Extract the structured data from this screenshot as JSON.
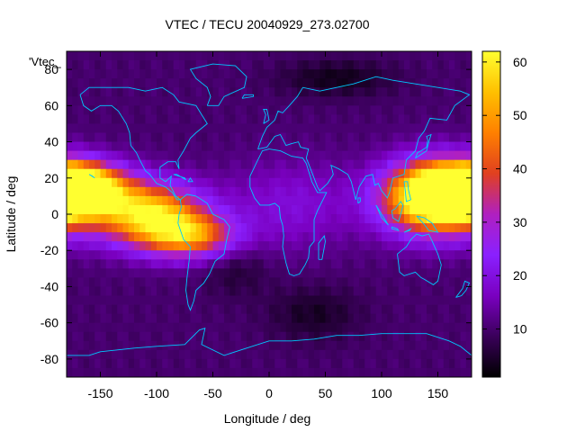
{
  "chart_data": {
    "type": "heatmap",
    "title": "VTEC / TECU 20040929_273.02700",
    "xlabel": "Longitude / deg",
    "ylabel": "Latitude / deg",
    "legend_key": "'Vtec_",
    "xlim": [
      -180,
      180
    ],
    "ylim": [
      -90,
      90
    ],
    "x_ticks": [
      -150,
      -100,
      -50,
      0,
      50,
      100,
      150
    ],
    "y_ticks": [
      -80,
      -60,
      -40,
      -20,
      0,
      20,
      40,
      60,
      80
    ],
    "colorbar": {
      "range": [
        1,
        62
      ],
      "ticks": [
        10,
        20,
        30,
        40,
        50,
        60
      ],
      "palette": [
        "#000000",
        "#3a005a",
        "#7a00c0",
        "#8a20ff",
        "#b020c0",
        "#e04020",
        "#ff8000",
        "#ffc000",
        "#ffff30"
      ]
    },
    "grid": {
      "lon_step": 5,
      "lat_step": 5,
      "background_tecu": 10,
      "features": [
        {
          "lon": -175,
          "lat": 15,
          "peak_tecu": 60,
          "lon_halfwidth": 40,
          "lat_halfwidth": 13
        },
        {
          "lon": -105,
          "lat": 0,
          "peak_tecu": 45,
          "lon_halfwidth": 45,
          "lat_halfwidth": 17
        },
        {
          "lon": -70,
          "lat": -12,
          "peak_tecu": 34,
          "lon_halfwidth": 40,
          "lat_halfwidth": 12
        },
        {
          "lon": 170,
          "lat": 8,
          "peak_tecu": 42,
          "lon_halfwidth": 55,
          "lat_halfwidth": 18
        },
        {
          "lon": 140,
          "lat": 10,
          "peak_tecu": 36,
          "lon_halfwidth": 40,
          "lat_halfwidth": 20
        },
        {
          "lon": 20,
          "lat": 5,
          "peak_tecu": 9,
          "lon_halfwidth": 60,
          "lat_halfwidth": 25
        },
        {
          "lon": 60,
          "lat": 75,
          "peak_tecu": -7,
          "lon_halfwidth": 50,
          "lat_halfwidth": 10
        },
        {
          "lon": 40,
          "lat": -55,
          "peak_tecu": -6,
          "lon_halfwidth": 40,
          "lat_halfwidth": 15
        },
        {
          "lon": -30,
          "lat": -30,
          "peak_tecu": -5,
          "lon_halfwidth": 30,
          "lat_halfwidth": 15
        }
      ]
    }
  },
  "colors": {
    "coastline": "#00c8ff",
    "axis": "#000000"
  }
}
